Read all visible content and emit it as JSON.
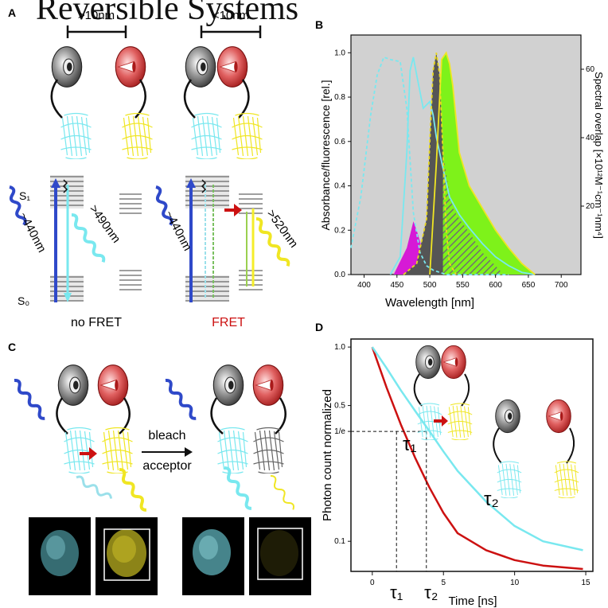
{
  "title": "Reversible Systems",
  "colors": {
    "cyan": "#79e8ef",
    "yellow": "#f5ee2a",
    "red": "#cc1111",
    "blue": "#2f49c9",
    "gray_plot": "#d1d1d1",
    "magenta": "#d61ad6",
    "green": "#7ef21a",
    "dark": "#555555"
  },
  "panel_a": {
    "label": "A",
    "dist_far": ">10nm",
    "dist_near": "<10nm",
    "s1": "S₁",
    "s0": "S₀",
    "excitation_left": "~440nm",
    "emission_left": ">490nm",
    "excitation_right": "~440nm",
    "emission_right": ">520nm",
    "caption_left": "no FRET",
    "caption_right": "FRET"
  },
  "panel_b": {
    "label": "B",
    "ylabel": "Absorbance/fluorescence [rel.]",
    "y2label": "Spectral overlap [×10¹²M⁻¹cm⁻¹nm⁴]",
    "xlabel": "Wavelength [nm]",
    "x_ticks": [
      "400",
      "450",
      "500",
      "550",
      "600",
      "650",
      "700"
    ],
    "y_ticks": [
      "0.0",
      "0.2",
      "0.4",
      "0.6",
      "0.8",
      "1.0"
    ],
    "y2_ticks": [
      "20",
      "40",
      "60"
    ]
  },
  "panel_c": {
    "label": "C",
    "arrow_label_1": "bleach",
    "arrow_label_2": "acceptor"
  },
  "panel_d": {
    "label": "D",
    "ylabel": "Photon count normalized",
    "xlabel": "Time [ns]",
    "x_ticks": [
      "0",
      "5",
      "10",
      "15"
    ],
    "y_ticks": [
      "1.0",
      "0.5",
      "1/e",
      "0.1"
    ],
    "tau1": "τ₁",
    "tau2": "τ₂",
    "tau1_axis": "τ₁",
    "tau2_axis": "τ₂"
  },
  "chart_data": [
    {
      "type": "line",
      "xlabel": "Wavelength [nm]",
      "ylabel": "Absorbance/fluorescence [rel.]",
      "xlim": [
        380,
        730
      ],
      "ylim": [
        0,
        1.08
      ],
      "series": [
        {
          "x": [
            380,
            395,
            410,
            420,
            430,
            440,
            455,
            465,
            475,
            485,
            495,
            505,
            515,
            525,
            540,
            560,
            580,
            600,
            620
          ],
          "y": [
            0.12,
            0.35,
            0.72,
            0.9,
            0.98,
            0.97,
            0.96,
            0.75,
            0.28,
            0.1,
            0.04,
            0.02,
            0.01,
            0.0,
            0.0,
            0.0,
            0.0,
            0.0,
            0.0
          ]
        },
        {
          "x": [
            440,
            455,
            465,
            470,
            475,
            480,
            490,
            500,
            505,
            510,
            520,
            530,
            545,
            560,
            580,
            600,
            620,
            640,
            660
          ],
          "y": [
            0.0,
            0.08,
            0.55,
            0.92,
            0.98,
            0.9,
            0.75,
            0.78,
            0.72,
            0.62,
            0.48,
            0.35,
            0.27,
            0.21,
            0.14,
            0.08,
            0.04,
            0.01,
            0.0
          ]
        },
        {
          "x": [
            460,
            480,
            495,
            500,
            505,
            510,
            515,
            520,
            525,
            530,
            540
          ],
          "y": [
            0.0,
            0.05,
            0.25,
            0.6,
            0.92,
            1.0,
            0.9,
            0.55,
            0.2,
            0.05,
            0.0
          ]
        },
        {
          "x": [
            500,
            510,
            518,
            525,
            530,
            535,
            545,
            560,
            580,
            600,
            620,
            640,
            660
          ],
          "y": [
            0.0,
            0.5,
            0.97,
            1.0,
            0.95,
            0.85,
            0.55,
            0.4,
            0.3,
            0.2,
            0.12,
            0.05,
            0.0
          ]
        }
      ]
    },
    {
      "type": "line",
      "xlabel": "Time [ns]",
      "ylabel": "Photon count normalized",
      "xlim": [
        -1.5,
        15.5
      ],
      "ylim": [
        0.07,
        1.1
      ],
      "series": [
        {
          "x": [
            0,
            1,
            2,
            3,
            4,
            5,
            6,
            8,
            10,
            12,
            14.8
          ],
          "y": [
            1.0,
            0.62,
            0.4,
            0.27,
            0.19,
            0.14,
            0.11,
            0.09,
            0.08,
            0.075,
            0.072
          ]
        },
        {
          "x": [
            0,
            1,
            2,
            3,
            4,
            5,
            6,
            8,
            10,
            12,
            14.8
          ],
          "y": [
            1.0,
            0.78,
            0.6,
            0.47,
            0.37,
            0.29,
            0.23,
            0.16,
            0.12,
            0.1,
            0.09
          ]
        }
      ]
    }
  ]
}
